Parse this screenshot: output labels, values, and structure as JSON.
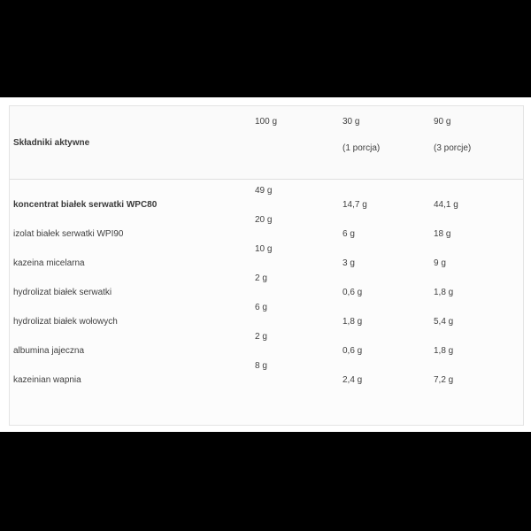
{
  "page": {
    "description": "Product ingredients table screenshot, letterboxed",
    "colors": {
      "letterbox": "#000000",
      "page_background": "#ffffff",
      "card_background": "#fcfcfc",
      "card_border": "#e4e4e4",
      "divider": "#dfdfdf",
      "text": "#3f3f3f"
    }
  },
  "table": {
    "header": {
      "label": "Składniki aktywne",
      "columns": [
        {
          "amount": "100 g",
          "note": ""
        },
        {
          "amount": "30 g",
          "note": "(1 porcja)"
        },
        {
          "amount": "90 g",
          "note": "(3 porcje)"
        }
      ]
    },
    "rows": [
      {
        "label": "koncentrat białek serwatki WPC80",
        "bold": true,
        "per100": "49 g",
        "per30": "14,7 g",
        "per90": "44,1 g"
      },
      {
        "label": "izolat białek serwatki WPI90",
        "bold": false,
        "per100": "20 g",
        "per30": "6 g",
        "per90": "18 g"
      },
      {
        "label": "kazeina micelarna",
        "bold": false,
        "per100": "10 g",
        "per30": "3 g",
        "per90": "9 g"
      },
      {
        "label": "hydrolizat białek serwatki",
        "bold": false,
        "per100": "2 g",
        "per30": "0,6 g",
        "per90": "1,8 g"
      },
      {
        "label": "hydrolizat białek wołowych",
        "bold": false,
        "per100": "6 g",
        "per30": "1,8 g",
        "per90": "5,4 g"
      },
      {
        "label": "albumina jajeczna",
        "bold": false,
        "per100": "2 g",
        "per30": "0,6 g",
        "per90": "1,8 g"
      },
      {
        "label": "kazeinian wapnia",
        "bold": false,
        "per100": "8 g",
        "per30": "2,4 g",
        "per90": "7,2 g"
      }
    ]
  }
}
